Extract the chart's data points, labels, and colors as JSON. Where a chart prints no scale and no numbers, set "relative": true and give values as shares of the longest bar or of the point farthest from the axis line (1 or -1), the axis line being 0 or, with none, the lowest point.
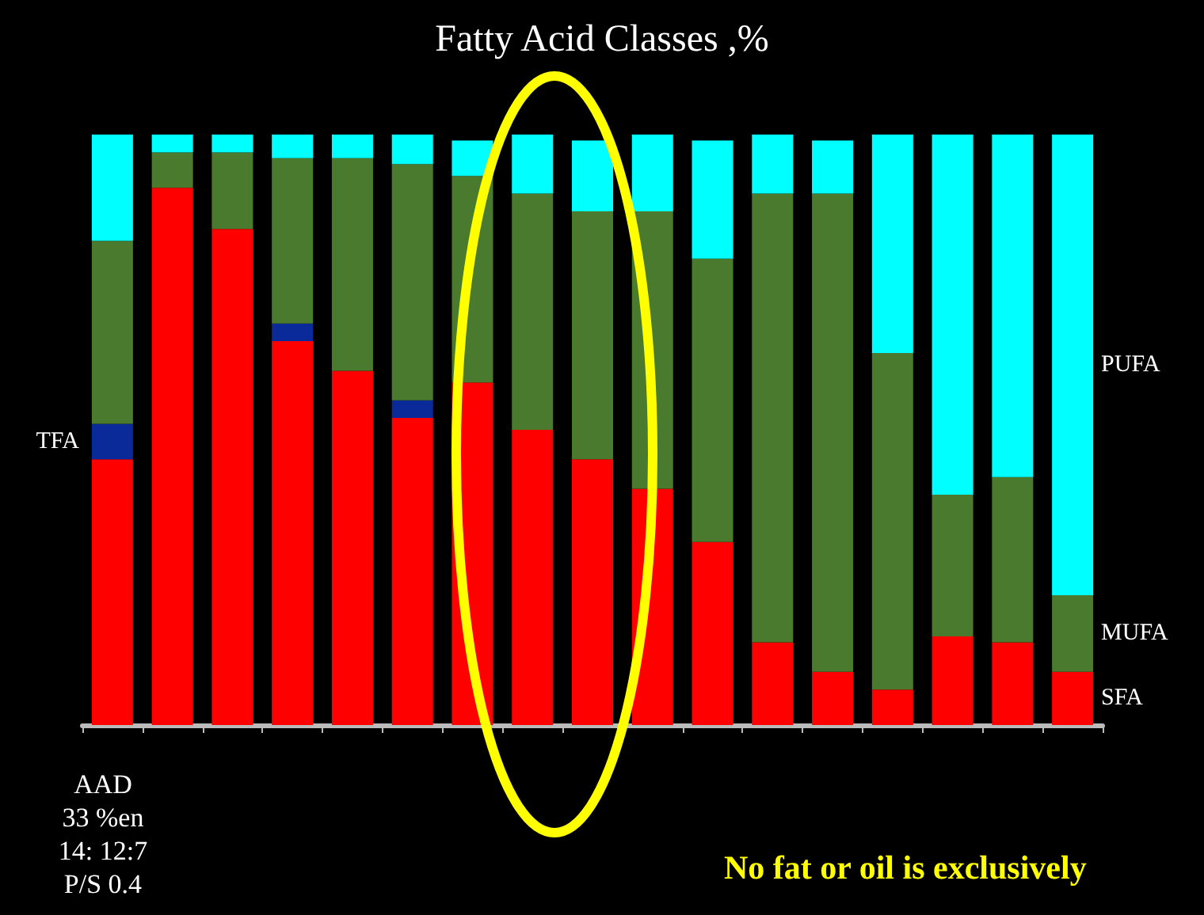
{
  "chart_data": {
    "type": "bar",
    "title": "Fatty Acid Classes ,%",
    "relative": true,
    "stacked": true,
    "legend": false,
    "grid": false,
    "categories": [
      null,
      null,
      null,
      null,
      null,
      null,
      null,
      null,
      null,
      null,
      null,
      null,
      null,
      null,
      null,
      null,
      null
    ],
    "series": [
      {
        "name": "SFA",
        "color": "#ff0000",
        "values": [
          0.45,
          0.91,
          0.84,
          0.65,
          0.6,
          0.52,
          0.58,
          0.5,
          0.45,
          0.4,
          0.31,
          0.14,
          0.09,
          0.06,
          0.15,
          0.14,
          0.09
        ]
      },
      {
        "name": "TFA",
        "color": "#0a2a9a",
        "values": [
          0.06,
          null,
          null,
          0.03,
          null,
          0.03,
          null,
          null,
          null,
          null,
          null,
          null,
          null,
          null,
          null,
          null,
          null
        ]
      },
      {
        "name": "MUFA",
        "color": "#4a7a2e",
        "values": [
          0.31,
          0.06,
          0.13,
          0.28,
          0.36,
          0.4,
          0.35,
          0.4,
          0.42,
          0.47,
          0.48,
          0.76,
          0.81,
          0.57,
          0.24,
          0.28,
          0.13
        ]
      },
      {
        "name": "PUFA",
        "color": "#00ffff",
        "values": [
          0.18,
          0.03,
          0.03,
          0.04,
          0.04,
          0.05,
          0.06,
          0.1,
          0.12,
          0.13,
          0.2,
          0.1,
          0.09,
          0.37,
          0.61,
          0.58,
          0.78
        ]
      }
    ],
    "annotations": [
      "AAD",
      "33 %en",
      "14: 12:7",
      "P/S 0.4",
      "No fat or oil is exclusively"
    ]
  }
}
